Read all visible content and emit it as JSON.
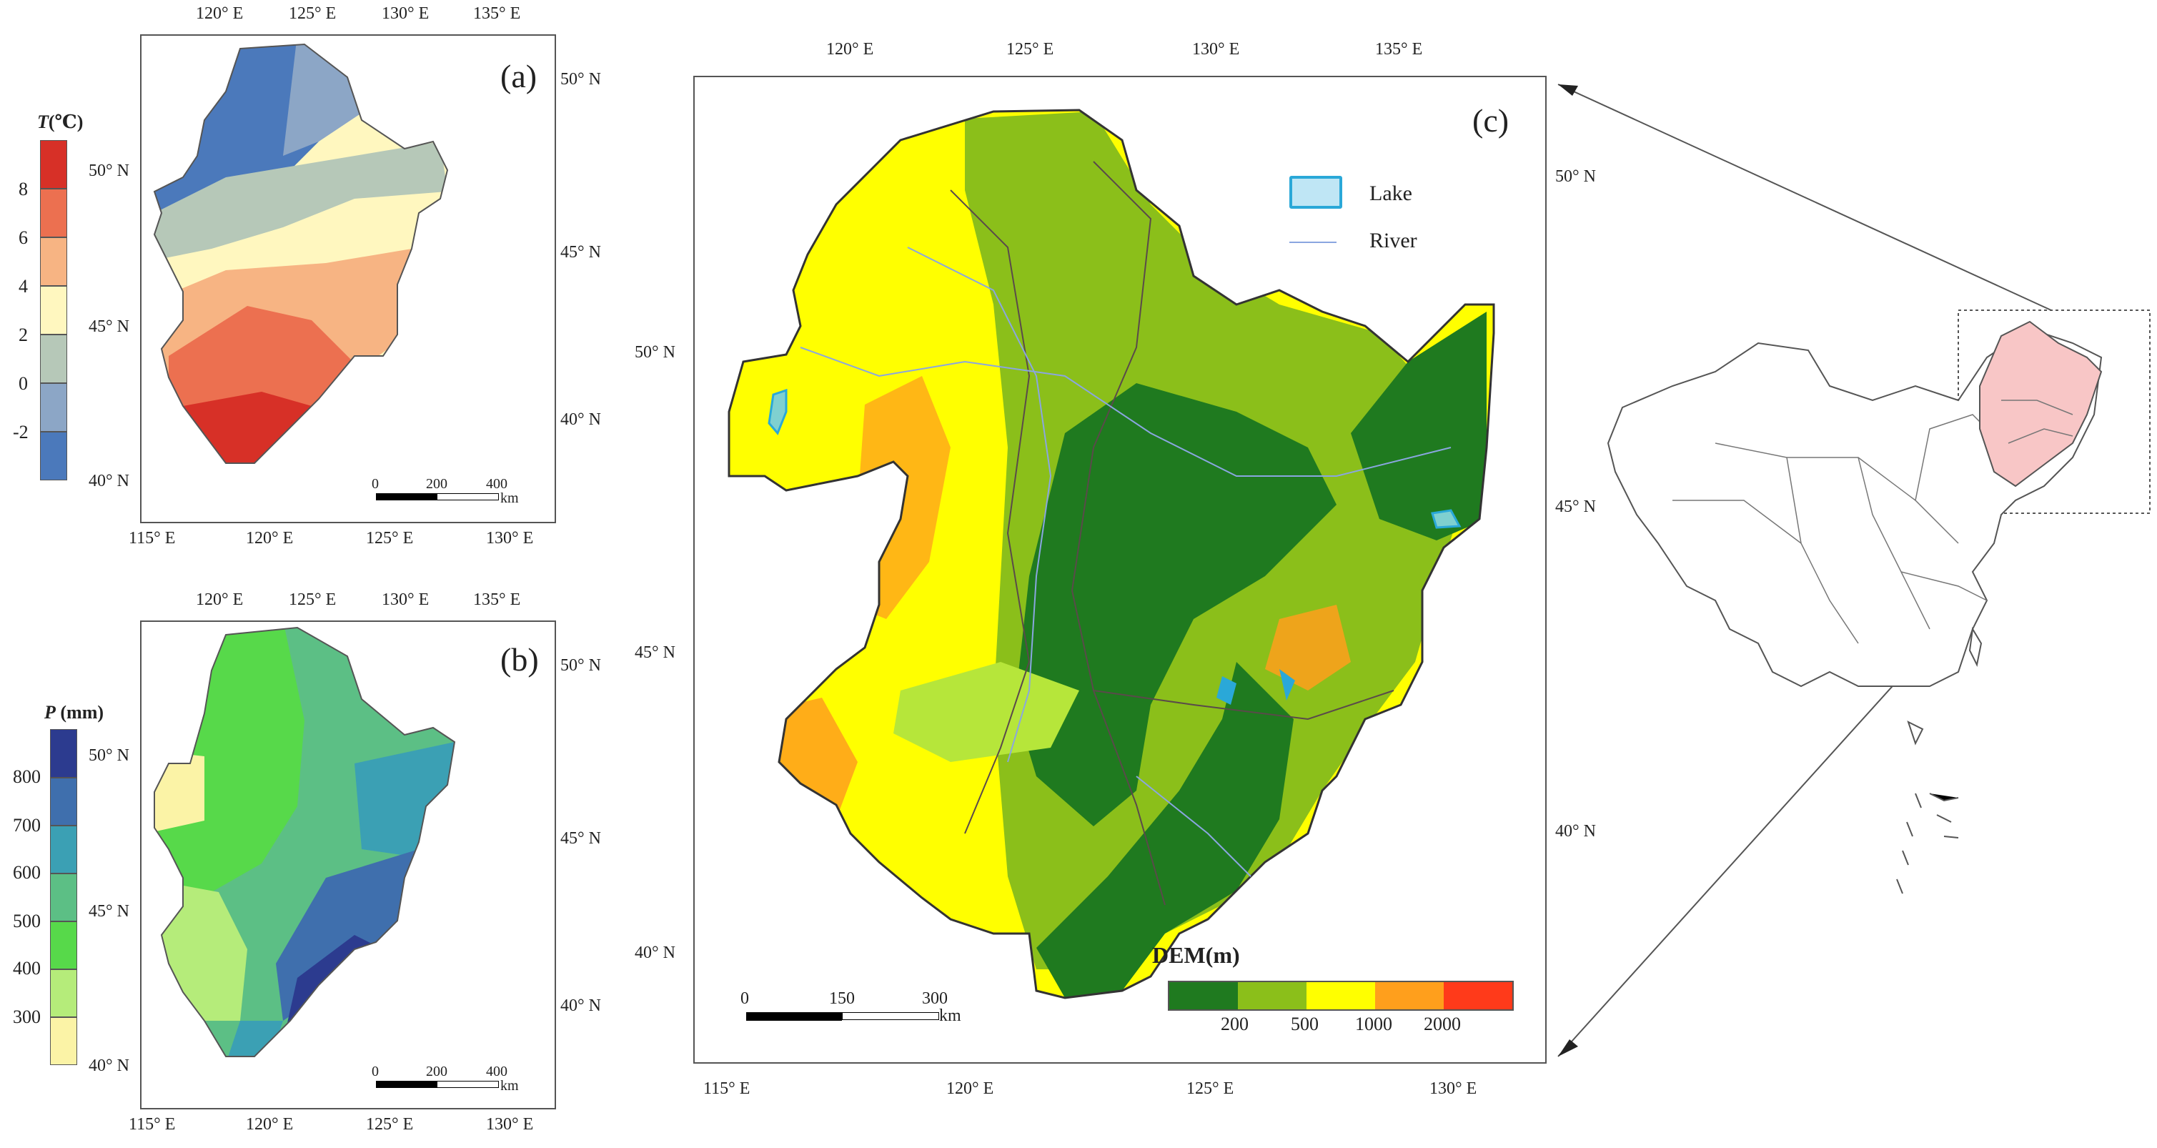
{
  "panels": {
    "a": {
      "label": "(a)",
      "legend_title_italic": "T",
      "legend_title_rest": "(℃)",
      "legend_levels": [
        "8",
        "6",
        "4",
        "2",
        "0",
        "-2"
      ],
      "legend_colors": [
        "#d73027",
        "#ec7050",
        "#f7b483",
        "#fff7bf",
        "#b6c8b8",
        "#8ca6c6",
        "#4b79bb"
      ],
      "top_ticks": [
        "120° E",
        "125° E",
        "130° E",
        "135° E"
      ],
      "bottom_ticks": [
        "115° E",
        "120° E",
        "125° E",
        "130° E"
      ],
      "left_ticks": [
        "50° N",
        "45° N",
        "40° N"
      ],
      "right_ticks": [
        "50° N",
        "45° N",
        "40° N"
      ],
      "scalebar": {
        "labels": [
          "0",
          "200",
          "400"
        ],
        "unit": "km"
      }
    },
    "b": {
      "label": "(b)",
      "legend_title_italic": "P",
      "legend_title_rest": " (mm)",
      "legend_levels": [
        "800",
        "700",
        "600",
        "500",
        "400",
        "300"
      ],
      "legend_colors": [
        "#2c3b8f",
        "#3f6fad",
        "#3ba0b4",
        "#5cbf85",
        "#57d94a",
        "#b5ec7a",
        "#fbf3a6"
      ],
      "top_ticks": [
        "120° E",
        "125° E",
        "130° E",
        "135° E"
      ],
      "bottom_ticks": [
        "115° E",
        "120° E",
        "125° E",
        "130° E"
      ],
      "left_ticks": [
        "50° N",
        "45° N",
        "40° N"
      ],
      "right_ticks": [
        "50° N",
        "45° N",
        "40° N"
      ],
      "scalebar": {
        "labels": [
          "0",
          "200",
          "400"
        ],
        "unit": "km"
      }
    },
    "c": {
      "label": "(c)",
      "top_ticks": [
        "120° E",
        "125° E",
        "130° E",
        "135° E"
      ],
      "bottom_ticks": [
        "115° E",
        "120° E",
        "125° E",
        "130° E"
      ],
      "left_ticks": [
        "50° N",
        "45° N",
        "40° N"
      ],
      "right_ticks": [
        "50° N",
        "45° N",
        "40° N"
      ],
      "legend": {
        "lake": "Lake",
        "river": "River"
      },
      "dem_title": "DEM(m)",
      "dem_levels": [
        "200",
        "500",
        "1000",
        "2000"
      ],
      "dem_colors": [
        "#1f7a1f",
        "#8bbf1a",
        "#ffff00",
        "#ff9f1c",
        "#ff3a1a"
      ],
      "scalebar": {
        "labels": [
          "0",
          "150",
          "300"
        ],
        "unit": "km"
      }
    }
  },
  "colors": {
    "lake_fill": "#bfe6f5",
    "lake_stroke": "#2aa8d8",
    "river": "#8aa6e0",
    "highlight_region": "#f8c6c6",
    "frame": "#555555"
  }
}
